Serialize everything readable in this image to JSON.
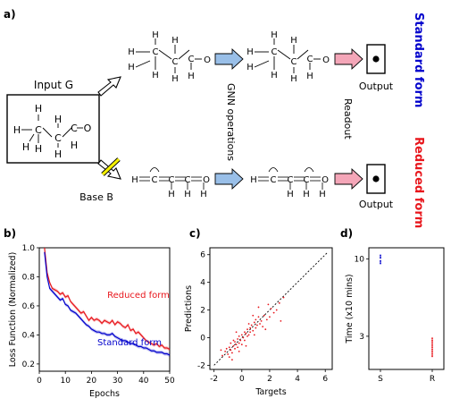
{
  "panel_labels": {
    "a": "a)",
    "b": "b)",
    "c": "c)",
    "d": "d)"
  },
  "panel_a": {
    "input_label": "Input G",
    "base_label": "Base B",
    "gnn_label": "GNN operations",
    "readout_label": "Readout",
    "output_top": "Output",
    "output_bottom": "Output",
    "standard_form": "Standard form",
    "reduced_form": "Reduced form",
    "colors": {
      "standard": "#0000cc",
      "reduced": "#e8161c",
      "gnn_arrow": "#99bfe8",
      "readout_arrow": "#f4a6b8",
      "cross": "#f4f000"
    },
    "atoms": {
      "H": "H",
      "C": "C",
      "O": "O"
    }
  },
  "chart_data": [
    {
      "type": "line",
      "panel": "b",
      "xlabel": "Epochs",
      "ylabel": "Loss Function (Normalized)",
      "xlim": [
        0,
        50
      ],
      "ylim": [
        0.15,
        1.0
      ],
      "xticks": [
        "0",
        "10",
        "20",
        "30",
        "40",
        "50"
      ],
      "yticks": [
        "0.2",
        "0.4",
        "0.6",
        "0.8",
        "1.0"
      ],
      "series": [
        {
          "name": "Reduced form",
          "color": "#e8161c",
          "x": [
            2,
            3,
            4,
            5,
            6,
            7,
            8,
            9,
            10,
            11,
            12,
            13,
            14,
            15,
            16,
            17,
            18,
            19,
            20,
            21,
            22,
            23,
            24,
            25,
            26,
            27,
            28,
            29,
            30,
            31,
            32,
            33,
            34,
            35,
            36,
            37,
            38,
            39,
            40,
            41,
            42,
            43,
            44,
            45,
            46,
            47,
            48,
            49,
            50
          ],
          "values": [
            1.0,
            0.83,
            0.76,
            0.72,
            0.71,
            0.7,
            0.68,
            0.69,
            0.66,
            0.67,
            0.63,
            0.61,
            0.59,
            0.57,
            0.55,
            0.56,
            0.53,
            0.5,
            0.52,
            0.5,
            0.51,
            0.5,
            0.48,
            0.5,
            0.49,
            0.48,
            0.5,
            0.47,
            0.49,
            0.48,
            0.46,
            0.45,
            0.47,
            0.43,
            0.44,
            0.41,
            0.42,
            0.4,
            0.38,
            0.36,
            0.35,
            0.34,
            0.33,
            0.34,
            0.32,
            0.33,
            0.31,
            0.31,
            0.3
          ]
        },
        {
          "name": "Standard form",
          "color": "#0000cc",
          "x": [
            2,
            3,
            4,
            5,
            6,
            7,
            8,
            9,
            10,
            11,
            12,
            13,
            14,
            15,
            16,
            17,
            18,
            19,
            20,
            21,
            22,
            23,
            24,
            25,
            26,
            27,
            28,
            29,
            30,
            31,
            32,
            33,
            34,
            35,
            36,
            37,
            38,
            39,
            40,
            41,
            42,
            43,
            44,
            45,
            46,
            47,
            48,
            49,
            50
          ],
          "values": [
            0.97,
            0.8,
            0.72,
            0.7,
            0.68,
            0.66,
            0.64,
            0.65,
            0.61,
            0.6,
            0.57,
            0.56,
            0.55,
            0.53,
            0.51,
            0.49,
            0.47,
            0.46,
            0.44,
            0.43,
            0.42,
            0.42,
            0.41,
            0.41,
            0.4,
            0.4,
            0.41,
            0.39,
            0.38,
            0.37,
            0.36,
            0.36,
            0.35,
            0.34,
            0.34,
            0.33,
            0.32,
            0.32,
            0.31,
            0.31,
            0.3,
            0.29,
            0.29,
            0.28,
            0.28,
            0.28,
            0.27,
            0.27,
            0.26
          ]
        }
      ]
    },
    {
      "type": "scatter",
      "panel": "c",
      "xlabel": "Targets",
      "ylabel": "Predictions",
      "xlim": [
        -2.3,
        6.5
      ],
      "ylim": [
        -2.3,
        6.5
      ],
      "xticks": [
        "-2",
        "0",
        "2",
        "4",
        "6"
      ],
      "yticks": [
        "-2",
        "0",
        "2",
        "4",
        "6"
      ],
      "color": "#e8161c",
      "points": [
        [
          -1.2,
          -1.0
        ],
        [
          -1.1,
          -0.8
        ],
        [
          -1.0,
          -1.2
        ],
        [
          -0.9,
          -0.7
        ],
        [
          -0.8,
          -0.9
        ],
        [
          -0.8,
          -0.4
        ],
        [
          -0.7,
          -1.1
        ],
        [
          -0.6,
          -0.6
        ],
        [
          -0.6,
          -0.2
        ],
        [
          -0.5,
          -0.8
        ],
        [
          -0.5,
          -0.3
        ],
        [
          -0.4,
          -0.5
        ],
        [
          -0.3,
          -0.1
        ],
        [
          -0.3,
          -0.7
        ],
        [
          -0.2,
          0.1
        ],
        [
          -0.2,
          -0.4
        ],
        [
          -0.1,
          -0.2
        ],
        [
          0.0,
          0.2
        ],
        [
          0.0,
          -0.5
        ],
        [
          0.1,
          0.0
        ],
        [
          0.2,
          0.4
        ],
        [
          0.2,
          -0.2
        ],
        [
          0.3,
          0.3
        ],
        [
          0.4,
          0.1
        ],
        [
          0.4,
          0.6
        ],
        [
          0.5,
          0.2
        ],
        [
          0.6,
          0.7
        ],
        [
          0.6,
          0.4
        ],
        [
          0.7,
          0.9
        ],
        [
          0.8,
          0.5
        ],
        [
          0.9,
          1.1
        ],
        [
          1.0,
          0.7
        ],
        [
          1.0,
          1.3
        ],
        [
          1.1,
          0.9
        ],
        [
          1.2,
          1.5
        ],
        [
          1.3,
          1.0
        ],
        [
          1.4,
          1.2
        ],
        [
          1.5,
          0.8
        ],
        [
          1.6,
          1.6
        ],
        [
          1.8,
          1.3
        ],
        [
          2.0,
          1.5
        ],
        [
          2.1,
          2.1
        ],
        [
          2.3,
          1.8
        ],
        [
          2.5,
          2.0
        ],
        [
          2.7,
          2.5
        ],
        [
          -1.4,
          -1.3
        ],
        [
          -1.5,
          -0.9
        ],
        [
          -0.9,
          -1.4
        ],
        [
          0.3,
          -0.6
        ],
        [
          0.8,
          1.6
        ],
        [
          1.7,
          0.6
        ],
        [
          2.8,
          1.2
        ],
        [
          0.5,
          1.0
        ],
        [
          -0.4,
          0.4
        ],
        [
          1.2,
          2.2
        ],
        [
          3.0,
          2.9
        ],
        [
          -0.7,
          -1.6
        ],
        [
          0.9,
          0.2
        ],
        [
          1.9,
          2.4
        ],
        [
          -0.2,
          -1.0
        ]
      ]
    },
    {
      "type": "scatter",
      "panel": "d",
      "ylabel": "Time (x10 mins)",
      "categories": [
        "S",
        "R"
      ],
      "ylim": [
        0,
        11
      ],
      "yticks": [
        "3",
        "10"
      ],
      "series": [
        {
          "category": "S",
          "color": "#0000cc",
          "values": [
            10.3,
            10.1,
            9.8,
            9.6
          ]
        },
        {
          "category": "R",
          "color": "#e8161c",
          "values": [
            2.8,
            2.6,
            2.4,
            2.2,
            2.0,
            1.8,
            1.6,
            1.4,
            1.2
          ]
        }
      ]
    }
  ]
}
